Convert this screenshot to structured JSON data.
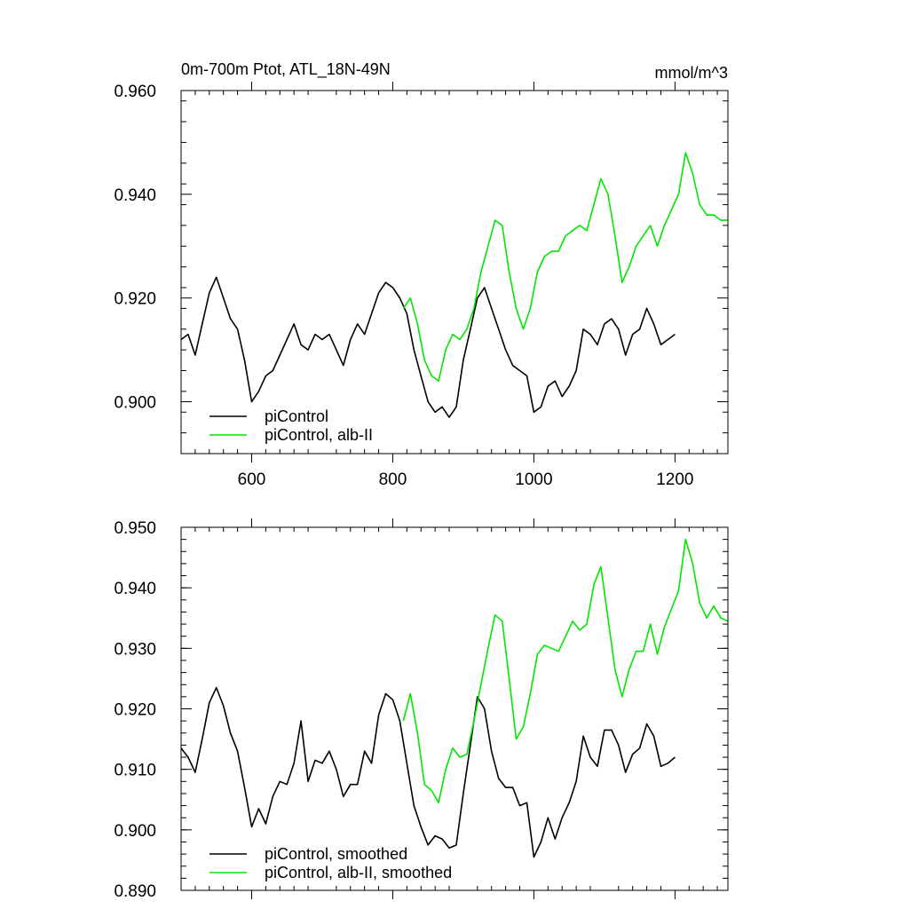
{
  "chart_data": [
    {
      "id": "top",
      "type": "line",
      "title_left": "0m-700m Ptot, ATL_18N-49N",
      "title_right": "mmol/m^3",
      "xlabel": "",
      "ylabel": "",
      "xlim": [
        500,
        1275
      ],
      "ylim": [
        0.89,
        0.96
      ],
      "xticks": [
        600,
        800,
        1000,
        1200
      ],
      "yticks": [
        0.9,
        0.92,
        0.94,
        0.96
      ],
      "ytick_labels": [
        "0.900",
        "0.920",
        "0.940",
        "0.960"
      ],
      "xtick_labels": [
        "600",
        "800",
        "1000",
        "1200"
      ],
      "grid": false,
      "legend_position": "bottom-left",
      "series": [
        {
          "name": "piControl",
          "color": "#000000",
          "x": [
            500,
            510,
            520,
            530,
            540,
            550,
            560,
            570,
            580,
            590,
            600,
            610,
            620,
            630,
            640,
            650,
            660,
            670,
            680,
            690,
            700,
            710,
            720,
            730,
            740,
            750,
            760,
            770,
            780,
            790,
            800,
            810,
            820,
            830,
            840,
            850,
            860,
            870,
            880,
            890,
            900,
            910,
            920,
            930,
            940,
            950,
            960,
            970,
            980,
            990,
            1000,
            1010,
            1020,
            1030,
            1040,
            1050,
            1060,
            1070,
            1080,
            1090,
            1100,
            1110,
            1120,
            1130,
            1140,
            1150,
            1160,
            1170,
            1180,
            1190,
            1200
          ],
          "values": [
            0.912,
            0.913,
            0.909,
            0.915,
            0.921,
            0.924,
            0.92,
            0.916,
            0.914,
            0.908,
            0.9,
            0.902,
            0.905,
            0.906,
            0.909,
            0.912,
            0.915,
            0.911,
            0.91,
            0.913,
            0.912,
            0.913,
            0.91,
            0.907,
            0.912,
            0.915,
            0.913,
            0.917,
            0.921,
            0.923,
            0.922,
            0.92,
            0.917,
            0.91,
            0.905,
            0.9,
            0.898,
            0.899,
            0.897,
            0.899,
            0.908,
            0.914,
            0.92,
            0.922,
            0.918,
            0.914,
            0.91,
            0.907,
            0.906,
            0.905,
            0.898,
            0.899,
            0.903,
            0.904,
            0.901,
            0.903,
            0.906,
            0.914,
            0.913,
            0.911,
            0.915,
            0.916,
            0.914,
            0.909,
            0.913,
            0.914,
            0.918,
            0.915,
            0.911,
            0.912,
            0.913
          ]
        },
        {
          "name": "piControl, alb-II",
          "color": "#00e600",
          "x": [
            815,
            825,
            835,
            845,
            855,
            865,
            875,
            885,
            895,
            905,
            915,
            925,
            935,
            945,
            955,
            965,
            975,
            985,
            995,
            1005,
            1015,
            1025,
            1035,
            1045,
            1055,
            1065,
            1075,
            1085,
            1095,
            1105,
            1115,
            1125,
            1135,
            1145,
            1155,
            1165,
            1175,
            1185,
            1195,
            1205,
            1215,
            1225,
            1235,
            1245,
            1255,
            1265,
            1275
          ],
          "values": [
            0.918,
            0.92,
            0.915,
            0.908,
            0.905,
            0.904,
            0.91,
            0.913,
            0.912,
            0.914,
            0.918,
            0.925,
            0.93,
            0.935,
            0.934,
            0.925,
            0.918,
            0.914,
            0.918,
            0.925,
            0.928,
            0.929,
            0.929,
            0.932,
            0.933,
            0.934,
            0.933,
            0.938,
            0.943,
            0.94,
            0.932,
            0.923,
            0.926,
            0.93,
            0.932,
            0.934,
            0.93,
            0.934,
            0.937,
            0.94,
            0.948,
            0.944,
            0.938,
            0.936,
            0.936,
            0.935,
            0.935
          ]
        }
      ]
    },
    {
      "id": "bottom",
      "type": "line",
      "title_left": "",
      "title_right": "",
      "xlabel": "",
      "ylabel": "",
      "xlim": [
        500,
        1275
      ],
      "ylim": [
        0.89,
        0.95
      ],
      "xticks": [
        600,
        800,
        1000,
        1200
      ],
      "yticks": [
        0.89,
        0.9,
        0.91,
        0.92,
        0.93,
        0.94,
        0.95
      ],
      "ytick_labels": [
        "0.890",
        "0.900",
        "0.910",
        "0.920",
        "0.930",
        "0.940",
        "0.950"
      ],
      "xtick_labels": [],
      "grid": false,
      "legend_position": "bottom-left",
      "series": [
        {
          "name": "piControl, smoothed",
          "color": "#000000",
          "x": [
            500,
            510,
            520,
            530,
            540,
            550,
            560,
            570,
            580,
            590,
            600,
            610,
            620,
            630,
            640,
            650,
            660,
            670,
            680,
            690,
            700,
            710,
            720,
            730,
            740,
            750,
            760,
            770,
            780,
            790,
            800,
            810,
            820,
            830,
            840,
            850,
            860,
            870,
            880,
            890,
            900,
            910,
            920,
            930,
            940,
            950,
            960,
            970,
            980,
            990,
            1000,
            1010,
            1020,
            1030,
            1040,
            1050,
            1060,
            1070,
            1080,
            1090,
            1100,
            1110,
            1120,
            1130,
            1140,
            1150,
            1160,
            1170,
            1180,
            1190,
            1200
          ],
          "values": [
            0.9135,
            0.912,
            0.9095,
            0.915,
            0.921,
            0.9235,
            0.9205,
            0.916,
            0.913,
            0.907,
            0.9005,
            0.9035,
            0.901,
            0.9055,
            0.908,
            0.9075,
            0.911,
            0.918,
            0.908,
            0.9115,
            0.911,
            0.913,
            0.91,
            0.9055,
            0.9075,
            0.9075,
            0.913,
            0.911,
            0.919,
            0.9225,
            0.9215,
            0.918,
            0.911,
            0.904,
            0.9005,
            0.8975,
            0.899,
            0.8985,
            0.897,
            0.8975,
            0.906,
            0.914,
            0.922,
            0.92,
            0.913,
            0.9085,
            0.907,
            0.907,
            0.904,
            0.9045,
            0.8955,
            0.898,
            0.902,
            0.8985,
            0.902,
            0.9045,
            0.908,
            0.9155,
            0.912,
            0.9105,
            0.9165,
            0.9165,
            0.914,
            0.9095,
            0.9125,
            0.9135,
            0.9175,
            0.9155,
            0.9105,
            0.911,
            0.912
          ]
        },
        {
          "name": "piControl, alb-II, smoothed",
          "color": "#00e600",
          "x": [
            815,
            825,
            835,
            845,
            855,
            865,
            875,
            885,
            895,
            905,
            915,
            925,
            935,
            945,
            955,
            965,
            975,
            985,
            995,
            1005,
            1015,
            1025,
            1035,
            1045,
            1055,
            1065,
            1075,
            1085,
            1095,
            1105,
            1115,
            1125,
            1135,
            1145,
            1155,
            1165,
            1175,
            1185,
            1195,
            1205,
            1215,
            1225,
            1235,
            1245,
            1255,
            1265,
            1275
          ],
          "values": [
            0.918,
            0.9225,
            0.916,
            0.9075,
            0.9065,
            0.9045,
            0.91,
            0.9135,
            0.912,
            0.9125,
            0.918,
            0.924,
            0.93,
            0.9355,
            0.9345,
            0.925,
            0.915,
            0.917,
            0.9225,
            0.929,
            0.9305,
            0.93,
            0.9295,
            0.932,
            0.9345,
            0.933,
            0.934,
            0.9405,
            0.9435,
            0.935,
            0.9265,
            0.922,
            0.9265,
            0.9295,
            0.9295,
            0.934,
            0.929,
            0.9335,
            0.9365,
            0.9395,
            0.948,
            0.944,
            0.9375,
            0.935,
            0.937,
            0.935,
            0.9345
          ]
        }
      ]
    }
  ]
}
